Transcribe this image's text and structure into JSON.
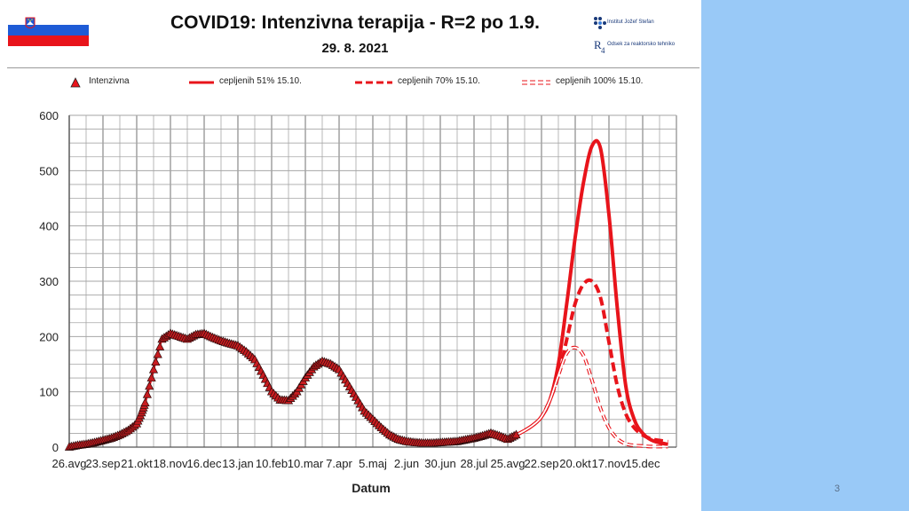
{
  "header": {
    "title": "COVID19: Intenzivna terapija - R=2 po 1.9.",
    "date": "29. 8. 2021",
    "institute_name": "Institut Jožef Stefan",
    "department_name": "Odsek za reaktorsko tehniko"
  },
  "footer": {
    "page_number": "3"
  },
  "colors": {
    "series": "#e8141b",
    "marker": "#a11214",
    "grid": "#a6a6a6",
    "background": "#99c9f7"
  },
  "chart_data": {
    "type": "line",
    "xlabel": "Datum",
    "ylabel": "",
    "ylim": [
      0,
      600
    ],
    "y_ticks": [
      0,
      100,
      200,
      300,
      400,
      500,
      600
    ],
    "x_tick_labels": [
      "26.avg",
      "23.sep",
      "21.okt",
      "18.nov",
      "16.dec",
      "13.jan",
      "10.feb",
      "10.mar",
      "7.apr",
      "5.maj",
      "2.jun",
      "30.jun",
      "28.jul",
      "25.avg",
      "22.sep",
      "20.okt",
      "17.nov",
      "15.dec"
    ],
    "x_unit": "days since 26.avg 2020 (tick every 28 days)",
    "grid": true,
    "legend": {
      "placement": "top"
    },
    "series": [
      {
        "name": "Intenzivna",
        "style": "markers",
        "x": [
          0,
          7,
          14,
          21,
          28,
          35,
          42,
          49,
          56,
          60,
          63,
          70,
          77,
          84,
          91,
          98,
          105,
          112,
          119,
          126,
          133,
          140,
          147,
          154,
          161,
          168,
          175,
          182,
          189,
          196,
          203,
          210,
          217,
          224,
          231,
          238,
          245,
          252,
          259,
          266,
          273,
          280,
          287,
          294,
          301,
          308,
          315,
          322,
          329,
          336,
          343,
          350,
          357,
          364,
          371
        ],
        "y": [
          0,
          3,
          5,
          8,
          12,
          16,
          22,
          30,
          42,
          62,
          80,
          140,
          195,
          205,
          200,
          195,
          203,
          205,
          198,
          192,
          187,
          183,
          172,
          158,
          130,
          100,
          85,
          84,
          100,
          125,
          145,
          155,
          150,
          140,
          115,
          90,
          65,
          50,
          35,
          22,
          14,
          10,
          8,
          7,
          7,
          8,
          9,
          10,
          13,
          16,
          20,
          25,
          20,
          14,
          22
        ]
      },
      {
        "name": "cepljenih 51% 15.10.",
        "style": "solid",
        "x": [
          371,
          378,
          385,
          392,
          399,
          406,
          413,
          420,
          427,
          434,
          441,
          448,
          455,
          462,
          469,
          476,
          483,
          490,
          497
        ],
        "y": [
          22,
          30,
          40,
          55,
          85,
          150,
          260,
          380,
          480,
          545,
          540,
          420,
          250,
          110,
          50,
          25,
          13,
          8,
          5
        ]
      },
      {
        "name": "cepljenih 70% 15.10.",
        "style": "dashed",
        "x": [
          371,
          378,
          385,
          392,
          399,
          406,
          413,
          420,
          427,
          434,
          441,
          448,
          455,
          462,
          469,
          476,
          483,
          490,
          497
        ],
        "y": [
          22,
          30,
          40,
          55,
          85,
          130,
          195,
          260,
          295,
          300,
          270,
          190,
          110,
          60,
          35,
          22,
          15,
          12,
          10
        ]
      },
      {
        "name": "cepljenih 100% 15.10.",
        "style": "double",
        "x": [
          371,
          378,
          385,
          392,
          399,
          406,
          413,
          420,
          427,
          434,
          441,
          448,
          455,
          462,
          469,
          476,
          483,
          490,
          497
        ],
        "y": [
          22,
          30,
          40,
          55,
          85,
          130,
          170,
          180,
          165,
          120,
          70,
          35,
          15,
          6,
          3,
          2,
          1,
          1,
          1
        ]
      }
    ]
  }
}
